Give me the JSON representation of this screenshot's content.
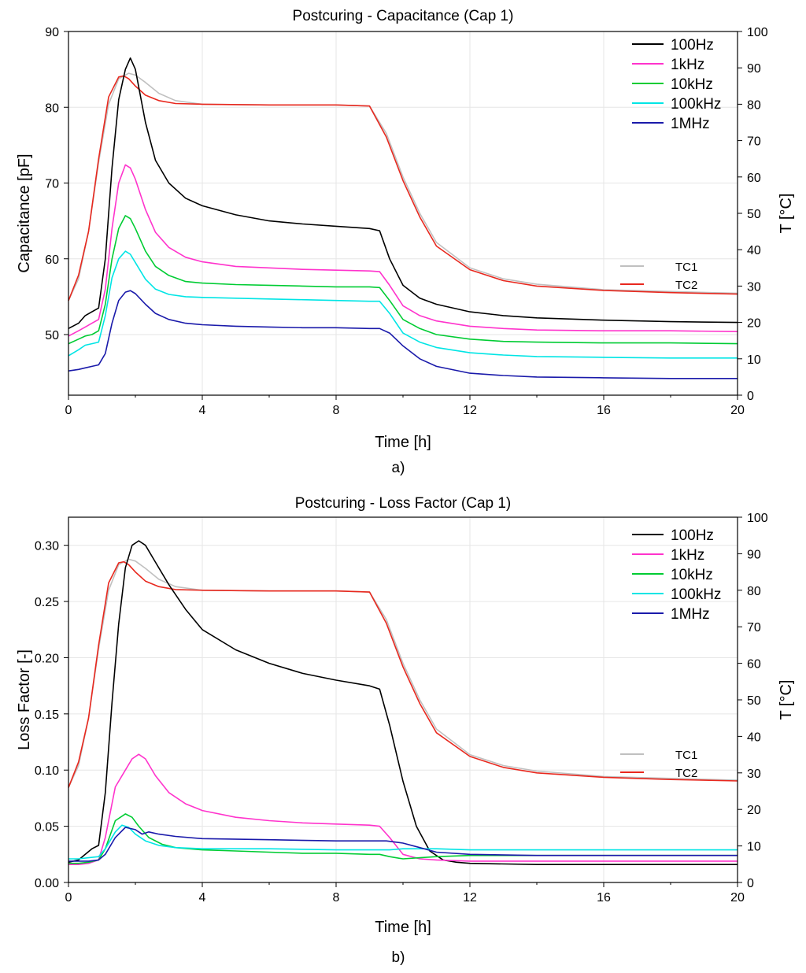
{
  "chart_data": [
    {
      "type": "line",
      "title": "Postcuring - Capacitance (Cap 1)",
      "subfigure_label": "a)",
      "xlabel": "Time [h]",
      "ylabel": "Capacitance [pF]",
      "y2label": "T [°C]",
      "xlim": [
        0,
        20
      ],
      "ylim": [
        42,
        90
      ],
      "y2lim": [
        0,
        100
      ],
      "xticks": [
        "0",
        "4",
        "8",
        "12",
        "16",
        "20"
      ],
      "yticks": [
        "50",
        "60",
        "70",
        "80",
        "90"
      ],
      "y2ticks": [
        "0",
        "10",
        "20",
        "30",
        "40",
        "50",
        "60",
        "70",
        "80",
        "90",
        "100"
      ],
      "grid": true,
      "legend_main": [
        "100Hz",
        "1kHz",
        "10kHz",
        "100kHz",
        "1MHz"
      ],
      "legend_temp": [
        "TC1",
        "TC2"
      ],
      "series": [
        {
          "name": "100Hz",
          "axis": "left",
          "color": "#000000",
          "x": [
            0,
            0.3,
            0.5,
            0.7,
            0.9,
            1.1,
            1.3,
            1.5,
            1.7,
            1.85,
            2.0,
            2.3,
            2.6,
            3.0,
            3.5,
            4.0,
            5.0,
            6.0,
            7.0,
            8.0,
            9.0,
            9.3,
            9.6,
            10.0,
            10.5,
            11.0,
            12.0,
            13.0,
            14.0,
            16.0,
            18.0,
            20.0
          ],
          "values": [
            50.8,
            51.5,
            52.5,
            53.0,
            53.5,
            60.0,
            72.0,
            81.0,
            85.0,
            86.5,
            85.0,
            78.0,
            73.0,
            70.0,
            68.0,
            67.0,
            65.8,
            65.0,
            64.6,
            64.3,
            64.0,
            63.7,
            60.0,
            56.5,
            54.8,
            54.0,
            53.0,
            52.5,
            52.2,
            51.9,
            51.7,
            51.6
          ]
        },
        {
          "name": "1kHz",
          "axis": "left",
          "color": "#ff33cc",
          "x": [
            0,
            0.3,
            0.5,
            0.7,
            0.9,
            1.1,
            1.3,
            1.5,
            1.7,
            1.85,
            2.0,
            2.3,
            2.6,
            3.0,
            3.5,
            4.0,
            5.0,
            6.0,
            7.0,
            8.0,
            9.0,
            9.3,
            9.6,
            10.0,
            10.5,
            11.0,
            12.0,
            13.0,
            14.0,
            16.0,
            18.0,
            20.0
          ],
          "values": [
            49.8,
            50.5,
            51.0,
            51.5,
            52.0,
            56.0,
            64.0,
            70.0,
            72.4,
            72.0,
            70.5,
            66.5,
            63.5,
            61.5,
            60.2,
            59.6,
            59.0,
            58.8,
            58.6,
            58.5,
            58.4,
            58.3,
            56.5,
            53.8,
            52.5,
            51.8,
            51.1,
            50.8,
            50.6,
            50.5,
            50.5,
            50.4
          ]
        },
        {
          "name": "10kHz",
          "axis": "left",
          "color": "#00cc33",
          "x": [
            0,
            0.3,
            0.5,
            0.7,
            0.9,
            1.1,
            1.3,
            1.5,
            1.7,
            1.85,
            2.0,
            2.3,
            2.6,
            3.0,
            3.5,
            4.0,
            5.0,
            6.0,
            7.0,
            8.0,
            9.0,
            9.3,
            9.6,
            10.0,
            10.5,
            11.0,
            12.0,
            13.0,
            14.0,
            16.0,
            18.0,
            20.0
          ],
          "values": [
            48.8,
            49.4,
            49.8,
            50.0,
            50.5,
            54.0,
            60.0,
            64.0,
            65.7,
            65.3,
            64.0,
            61.0,
            59.0,
            57.8,
            57.0,
            56.8,
            56.6,
            56.5,
            56.4,
            56.3,
            56.3,
            56.2,
            54.5,
            52.0,
            50.8,
            50.0,
            49.4,
            49.1,
            49.0,
            48.9,
            48.9,
            48.8
          ]
        },
        {
          "name": "100kHz",
          "axis": "left",
          "color": "#00e5e5",
          "x": [
            0,
            0.3,
            0.5,
            0.7,
            0.9,
            1.1,
            1.3,
            1.5,
            1.7,
            1.85,
            2.0,
            2.3,
            2.6,
            3.0,
            3.5,
            4.0,
            5.0,
            6.0,
            7.0,
            8.0,
            9.0,
            9.3,
            9.6,
            10.0,
            10.5,
            11.0,
            12.0,
            13.0,
            14.0,
            16.0,
            18.0,
            20.0
          ],
          "values": [
            47.2,
            48.0,
            48.6,
            48.8,
            49.0,
            52.5,
            57.5,
            60.0,
            61.0,
            60.6,
            59.5,
            57.3,
            56.0,
            55.3,
            55.0,
            54.9,
            54.8,
            54.7,
            54.6,
            54.5,
            54.4,
            54.4,
            52.8,
            50.2,
            49.0,
            48.3,
            47.6,
            47.3,
            47.1,
            47.0,
            46.9,
            46.9
          ]
        },
        {
          "name": "1MHz",
          "axis": "left",
          "color": "#1a1aaa",
          "x": [
            0,
            0.3,
            0.5,
            0.7,
            0.9,
            1.1,
            1.3,
            1.5,
            1.7,
            1.85,
            2.0,
            2.3,
            2.6,
            3.0,
            3.5,
            4.0,
            5.0,
            6.0,
            7.0,
            8.0,
            9.0,
            9.3,
            9.6,
            10.0,
            10.5,
            11.0,
            12.0,
            13.0,
            14.0,
            16.0,
            18.0,
            20.0
          ],
          "values": [
            45.2,
            45.4,
            45.6,
            45.8,
            46.0,
            47.5,
            51.5,
            54.5,
            55.6,
            55.8,
            55.4,
            54.0,
            52.8,
            52.0,
            51.5,
            51.3,
            51.1,
            51.0,
            50.9,
            50.9,
            50.8,
            50.8,
            50.2,
            48.5,
            46.8,
            45.8,
            44.9,
            44.6,
            44.4,
            44.3,
            44.2,
            44.2
          ]
        },
        {
          "name": "TC1",
          "axis": "right",
          "color": "#c0c0c0",
          "x": [
            0,
            0.3,
            0.6,
            0.9,
            1.2,
            1.5,
            1.8,
            2.0,
            2.3,
            2.7,
            3.2,
            4.0,
            6.0,
            8.0,
            9.0,
            9.5,
            10.0,
            10.5,
            11.0,
            12.0,
            13.0,
            14.0,
            16.0,
            18.0,
            20.0
          ],
          "values": [
            26.0,
            32.0,
            45.0,
            64.0,
            80.0,
            87.0,
            88.5,
            88.0,
            86.0,
            83.0,
            81.0,
            80.0,
            79.8,
            79.8,
            79.5,
            72.0,
            60.0,
            50.0,
            42.0,
            35.0,
            32.0,
            30.5,
            29.0,
            28.5,
            28.0
          ]
        },
        {
          "name": "TC2",
          "axis": "right",
          "color": "#e8281e",
          "x": [
            0,
            0.3,
            0.6,
            0.9,
            1.2,
            1.5,
            1.65,
            1.8,
            2.0,
            2.3,
            2.7,
            3.2,
            4.0,
            6.0,
            8.0,
            9.0,
            9.5,
            10.0,
            10.5,
            11.0,
            12.0,
            13.0,
            14.0,
            16.0,
            18.0,
            20.0
          ],
          "values": [
            26.0,
            33.0,
            45.0,
            65.0,
            82.0,
            87.5,
            87.8,
            87.0,
            85.0,
            82.5,
            81.0,
            80.2,
            80.0,
            79.8,
            79.8,
            79.5,
            71.0,
            59.0,
            49.0,
            41.0,
            34.5,
            31.5,
            30.0,
            28.8,
            28.2,
            27.8
          ]
        }
      ]
    },
    {
      "type": "line",
      "title": "Postcuring - Loss Factor (Cap 1)",
      "subfigure_label": "b)",
      "xlabel": "Time [h]",
      "ylabel": "Loss Factor [-]",
      "y2label": "T [°C]",
      "xlim": [
        0,
        20
      ],
      "ylim": [
        0,
        0.325
      ],
      "y2lim": [
        0,
        100
      ],
      "xticks": [
        "0",
        "4",
        "8",
        "12",
        "16",
        "20"
      ],
      "yticks": [
        "0.00",
        "0.05",
        "0.10",
        "0.15",
        "0.20",
        "0.25",
        "0.30"
      ],
      "y2ticks": [
        "0",
        "10",
        "20",
        "30",
        "40",
        "50",
        "60",
        "70",
        "80",
        "90",
        "100"
      ],
      "grid": true,
      "legend_main": [
        "100Hz",
        "1kHz",
        "10kHz",
        "100kHz",
        "1MHz"
      ],
      "legend_temp": [
        "TC1",
        "TC2"
      ],
      "series": [
        {
          "name": "100Hz",
          "axis": "left",
          "color": "#000000",
          "x": [
            0,
            0.3,
            0.5,
            0.7,
            0.9,
            1.1,
            1.3,
            1.5,
            1.7,
            1.9,
            2.1,
            2.3,
            2.6,
            3.0,
            3.5,
            4.0,
            5.0,
            6.0,
            7.0,
            8.0,
            9.0,
            9.3,
            9.6,
            10.0,
            10.4,
            10.8,
            11.2,
            11.6,
            12.0,
            14.0,
            16.0,
            18.0,
            20.0
          ],
          "values": [
            0.018,
            0.02,
            0.025,
            0.03,
            0.033,
            0.08,
            0.16,
            0.23,
            0.28,
            0.3,
            0.304,
            0.3,
            0.285,
            0.265,
            0.243,
            0.225,
            0.207,
            0.195,
            0.186,
            0.18,
            0.175,
            0.172,
            0.14,
            0.09,
            0.05,
            0.028,
            0.02,
            0.018,
            0.017,
            0.016,
            0.016,
            0.016,
            0.016
          ]
        },
        {
          "name": "1kHz",
          "axis": "left",
          "color": "#ff33cc",
          "x": [
            0,
            0.3,
            0.6,
            0.9,
            1.1,
            1.4,
            1.7,
            1.9,
            2.1,
            2.3,
            2.6,
            3.0,
            3.5,
            4.0,
            5.0,
            6.0,
            7.0,
            8.0,
            9.0,
            9.3,
            9.6,
            10.0,
            10.5,
            11.0,
            12.0,
            14.0,
            16.0,
            20.0
          ],
          "values": [
            0.016,
            0.016,
            0.017,
            0.02,
            0.04,
            0.085,
            0.1,
            0.11,
            0.114,
            0.11,
            0.095,
            0.08,
            0.07,
            0.064,
            0.058,
            0.055,
            0.053,
            0.052,
            0.051,
            0.05,
            0.04,
            0.025,
            0.021,
            0.02,
            0.019,
            0.019,
            0.019,
            0.019
          ]
        },
        {
          "name": "10kHz",
          "axis": "left",
          "color": "#00cc33",
          "x": [
            0,
            0.3,
            0.6,
            0.9,
            1.1,
            1.4,
            1.7,
            1.9,
            2.1,
            2.4,
            2.8,
            3.2,
            4.0,
            5.0,
            6.0,
            7.0,
            8.0,
            9.0,
            9.3,
            9.6,
            10.0,
            10.5,
            11.0,
            12.0,
            14.0,
            16.0,
            20.0
          ],
          "values": [
            0.017,
            0.017,
            0.018,
            0.02,
            0.03,
            0.055,
            0.061,
            0.058,
            0.05,
            0.04,
            0.034,
            0.031,
            0.029,
            0.028,
            0.027,
            0.026,
            0.026,
            0.025,
            0.025,
            0.023,
            0.021,
            0.022,
            0.023,
            0.024,
            0.024,
            0.024,
            0.024
          ]
        },
        {
          "name": "100kHz",
          "axis": "left",
          "color": "#00e5e5",
          "x": [
            0,
            0.3,
            0.6,
            0.9,
            1.1,
            1.4,
            1.6,
            1.8,
            2.0,
            2.3,
            2.7,
            3.2,
            4.0,
            6.0,
            8.0,
            9.0,
            9.3,
            9.6,
            10.0,
            11.0,
            12.0,
            14.0,
            16.0,
            20.0
          ],
          "values": [
            0.021,
            0.021,
            0.022,
            0.023,
            0.03,
            0.045,
            0.051,
            0.049,
            0.043,
            0.037,
            0.033,
            0.031,
            0.03,
            0.03,
            0.029,
            0.029,
            0.029,
            0.029,
            0.03,
            0.03,
            0.029,
            0.029,
            0.029,
            0.029
          ]
        },
        {
          "name": "1MHz",
          "axis": "left",
          "color": "#1a1aaa",
          "x": [
            0,
            0.3,
            0.6,
            0.9,
            1.1,
            1.4,
            1.7,
            2.0,
            2.2,
            2.4,
            2.7,
            3.2,
            4.0,
            6.0,
            8.0,
            9.0,
            9.5,
            10.0,
            10.5,
            11.0,
            12.0,
            14.0,
            16.0,
            20.0
          ],
          "values": [
            0.019,
            0.019,
            0.019,
            0.02,
            0.025,
            0.04,
            0.049,
            0.047,
            0.043,
            0.045,
            0.043,
            0.041,
            0.039,
            0.038,
            0.037,
            0.037,
            0.037,
            0.035,
            0.031,
            0.027,
            0.025,
            0.024,
            0.024,
            0.024
          ]
        },
        {
          "name": "TC1",
          "axis": "right",
          "color": "#c0c0c0",
          "x": [
            0,
            0.3,
            0.6,
            0.9,
            1.2,
            1.5,
            1.8,
            2.0,
            2.3,
            2.7,
            3.2,
            4.0,
            6.0,
            8.0,
            9.0,
            9.5,
            10.0,
            10.5,
            11.0,
            12.0,
            13.0,
            14.0,
            16.0,
            18.0,
            20.0
          ],
          "values": [
            26.0,
            32.0,
            45.0,
            64.0,
            80.0,
            87.0,
            88.5,
            88.0,
            86.0,
            83.0,
            81.0,
            80.0,
            79.8,
            79.8,
            79.5,
            72.0,
            60.0,
            50.0,
            42.0,
            35.0,
            32.0,
            30.5,
            29.0,
            28.5,
            28.0
          ]
        },
        {
          "name": "TC2",
          "axis": "right",
          "color": "#e8281e",
          "x": [
            0,
            0.3,
            0.6,
            0.9,
            1.2,
            1.5,
            1.65,
            1.8,
            2.0,
            2.3,
            2.7,
            3.2,
            4.0,
            6.0,
            8.0,
            9.0,
            9.5,
            10.0,
            10.5,
            11.0,
            12.0,
            13.0,
            14.0,
            16.0,
            18.0,
            20.0
          ],
          "values": [
            26.0,
            33.0,
            45.0,
            65.0,
            82.0,
            87.5,
            87.8,
            87.0,
            85.0,
            82.5,
            81.0,
            80.2,
            80.0,
            79.8,
            79.8,
            79.5,
            71.0,
            59.0,
            49.0,
            41.0,
            34.5,
            31.5,
            30.0,
            28.8,
            28.2,
            27.8
          ]
        }
      ]
    }
  ]
}
